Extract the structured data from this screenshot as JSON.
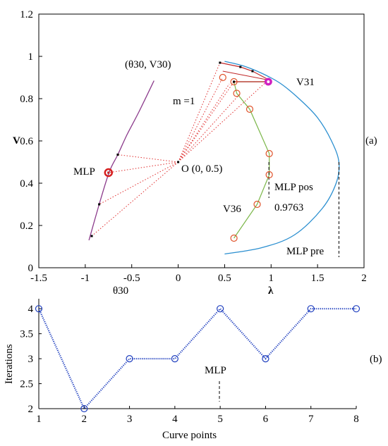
{
  "chart_data": [
    {
      "panel": "(a)",
      "type": "line",
      "xlim": [
        -1.5,
        2
      ],
      "ylim": [
        0,
        1.2
      ],
      "xticks": [
        "-1.5",
        "-1",
        "-0.5",
        "0",
        "0.5",
        "1",
        "1.5",
        "2"
      ],
      "yticks": [
        "0",
        "0.2",
        "0.4",
        "0.6",
        "0.8",
        "1",
        "1.2"
      ],
      "ylabel": "V",
      "xlabel_left": "θ30",
      "xlabel_right": "λ",
      "annotations": {
        "theta_point": "(θ30, V30)",
        "m_label": "m =1",
        "origin_label": "O (0, 0.5)",
        "mlp_left": "MLP",
        "v31": "V31",
        "v36": "V36",
        "mlp_pos": "MLP pos",
        "mlp_pos_value": "0.9763",
        "mlp_pre": "MLP pre"
      },
      "colors": {
        "pv_curve": "#2b8fd0",
        "theta_curve": "#8b3a8b",
        "corrector": "#7ab648",
        "marker": "#e0522a",
        "rays": "#e03030",
        "highlight": "#d020c0"
      },
      "pv_curve": [
        [
          0.5,
          0.9764
        ],
        [
          0.7,
          0.955
        ],
        [
          0.9,
          0.92
        ],
        [
          1.1,
          0.872
        ],
        [
          1.3,
          0.8
        ],
        [
          1.5,
          0.71
        ],
        [
          1.65,
          0.6
        ],
        [
          1.73,
          0.5
        ],
        [
          1.7,
          0.4
        ],
        [
          1.55,
          0.28
        ],
        [
          1.25,
          0.155
        ],
        [
          0.9,
          0.095
        ],
        [
          0.5,
          0.065
        ]
      ],
      "theta_curve": [
        [
          -0.96,
          0.13
        ],
        [
          -0.85,
          0.3
        ],
        [
          -0.74,
          0.455
        ],
        [
          -0.65,
          0.535
        ],
        [
          -0.55,
          0.63
        ],
        [
          -0.42,
          0.74
        ],
        [
          -0.26,
          0.885
        ]
      ],
      "ray_points": [
        [
          -0.93,
          0.15
        ],
        [
          -0.85,
          0.3
        ],
        [
          -0.75,
          0.45
        ],
        [
          -0.65,
          0.535
        ]
      ],
      "origin": [
        0,
        0.5
      ],
      "fan_points": [
        [
          0.45,
          0.97
        ],
        [
          0.48,
          0.9
        ],
        [
          0.55,
          0.87
        ],
        [
          0.6,
          0.88
        ],
        [
          0.67,
          0.825
        ],
        [
          0.95,
          0.88
        ]
      ],
      "corrector_points": [
        [
          0.97,
          0.88
        ],
        [
          0.6,
          0.88
        ],
        [
          0.63,
          0.825
        ],
        [
          0.77,
          0.75
        ],
        [
          0.98,
          0.54
        ],
        [
          0.98,
          0.44
        ],
        [
          0.85,
          0.3
        ],
        [
          0.6,
          0.14
        ]
      ],
      "mlp_left_point": [
        -0.75,
        0.45
      ],
      "mlp_pos_x": 0.9763,
      "mlp_pre_x": 1.73
    },
    {
      "panel": "(b)",
      "type": "line",
      "xlabel": "Curve points",
      "ylabel": "Iterations",
      "xlim": [
        1,
        8
      ],
      "ylim": [
        2,
        4.2
      ],
      "xticks": [
        "1",
        "2",
        "3",
        "4",
        "5",
        "6",
        "7",
        "8"
      ],
      "yticks": [
        "2",
        "2.5",
        "3",
        "3.5",
        "4"
      ],
      "x": [
        1,
        2,
        3,
        4,
        5,
        6,
        7,
        8
      ],
      "values": [
        4,
        2,
        3,
        3,
        4,
        3,
        4,
        4
      ],
      "annotation": "MLP",
      "color": "#1f3fbf"
    }
  ],
  "panel_labels": {
    "a": "(a)",
    "b": "(b)"
  }
}
